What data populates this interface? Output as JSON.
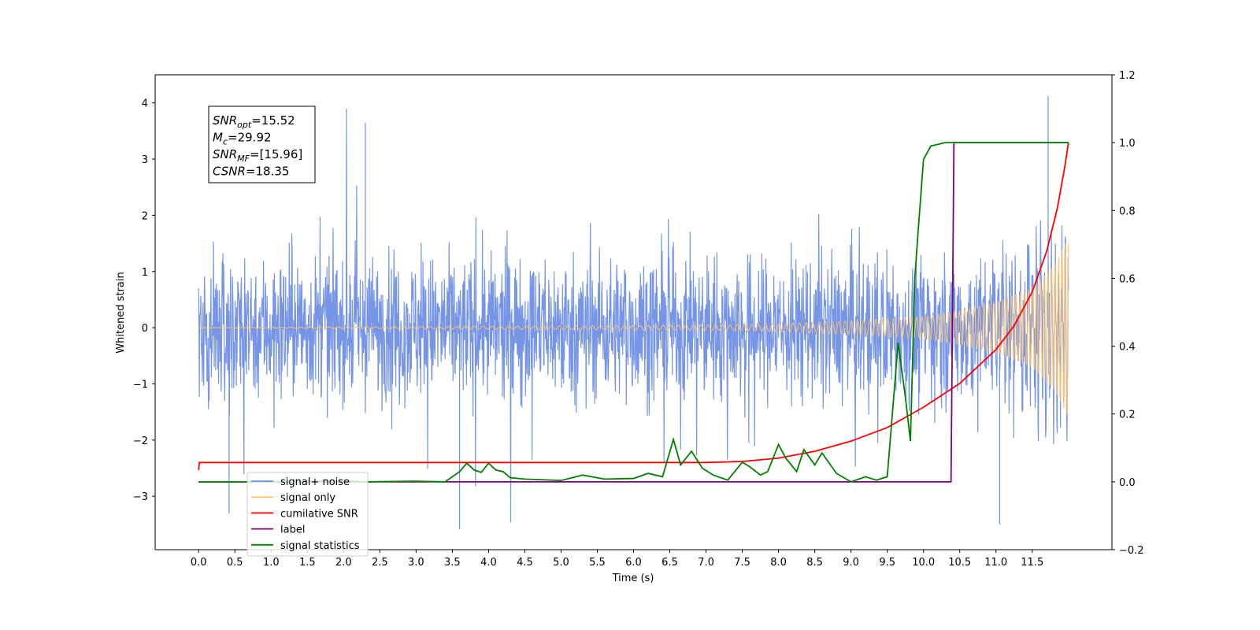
{
  "chart_data": {
    "type": "line",
    "xlabel": "Time (s)",
    "ylabel_left": "Whitened strain",
    "ylabel_right": "",
    "xlim": [
      -0.6,
      12.6
    ],
    "ylim_left": [
      -3.95,
      4.5
    ],
    "ylim_right": [
      -0.2,
      1.2
    ],
    "x_ticks": [
      "0.0",
      "0.5",
      "1.0",
      "1.5",
      "2.0",
      "2.5",
      "3.0",
      "3.5",
      "4.0",
      "4.5",
      "5.0",
      "5.5",
      "6.0",
      "6.5",
      "7.0",
      "7.5",
      "8.0",
      "8.5",
      "9.0",
      "9.5",
      "10.0",
      "10.5",
      "11.0",
      "11.5"
    ],
    "y_ticks_left": [
      "4",
      "3",
      "2",
      "1",
      "0",
      "−1",
      "−2",
      "−3"
    ],
    "y_ticks_right": [
      "1.2",
      "1.0",
      "0.8",
      "0.6",
      "0.4",
      "0.2",
      "0.0",
      "−0.2"
    ],
    "grid": false,
    "legend_position": "lower-left",
    "series": [
      {
        "name": "signal+ noise",
        "axis": "left",
        "color": "#6f8fe6",
        "description_values": {
          "x_range": [
            0.0,
            12.0
          ],
          "envelope_typical": [
            -1.8,
            1.8
          ],
          "max": 4.12,
          "min": -3.59
        }
      },
      {
        "name": "signal only",
        "axis": "left",
        "color": "#ffc266",
        "description_values": {
          "x_range": [
            0.0,
            12.0
          ],
          "amplitude_points": [
            [
              0.0,
              0.0
            ],
            [
              7.5,
              0.05
            ],
            [
              9.0,
              0.12
            ],
            [
              10.0,
              0.2
            ],
            [
              10.5,
              0.3
            ],
            [
              11.0,
              0.45
            ],
            [
              11.5,
              0.7
            ],
            [
              11.8,
              1.1
            ],
            [
              12.0,
              1.6
            ]
          ]
        }
      },
      {
        "name": "cumilative SNR",
        "axis": "right",
        "color": "#ff0000",
        "x": [
          0.0,
          0.01,
          2.0,
          4.0,
          6.0,
          7.0,
          7.5,
          8.0,
          8.5,
          9.0,
          9.5,
          10.0,
          10.5,
          11.0,
          11.25,
          11.5,
          11.7,
          11.85,
          11.95,
          12.0
        ],
        "values": [
          0.035,
          0.057,
          0.057,
          0.057,
          0.057,
          0.057,
          0.06,
          0.07,
          0.09,
          0.12,
          0.16,
          0.22,
          0.29,
          0.39,
          0.46,
          0.56,
          0.68,
          0.81,
          0.93,
          1.0
        ]
      },
      {
        "name": "label",
        "axis": "right",
        "color": "#800080",
        "x": [
          0.0,
          10.38,
          10.42,
          12.0
        ],
        "values": [
          0.0,
          0.0,
          1.0,
          1.0
        ]
      },
      {
        "name": "signal statistics",
        "axis": "right",
        "color": "#008000",
        "x": [
          0.0,
          1.0,
          2.0,
          2.3,
          3.0,
          3.4,
          3.6,
          3.7,
          3.8,
          3.9,
          4.0,
          4.1,
          4.2,
          4.3,
          4.5,
          5.0,
          5.3,
          5.6,
          6.0,
          6.2,
          6.4,
          6.55,
          6.65,
          6.8,
          6.95,
          7.1,
          7.3,
          7.5,
          7.6,
          7.75,
          7.85,
          8.0,
          8.1,
          8.25,
          8.35,
          8.5,
          8.6,
          8.8,
          9.0,
          9.2,
          9.35,
          9.5,
          9.65,
          9.75,
          9.82,
          9.88,
          9.93,
          10.0,
          10.1,
          10.2,
          10.3,
          10.45,
          11.0,
          12.0
        ],
        "values": [
          0.0,
          0.0,
          0.003,
          0.0,
          0.002,
          0.0,
          0.03,
          0.055,
          0.035,
          0.028,
          0.055,
          0.035,
          0.03,
          0.012,
          0.008,
          0.004,
          0.02,
          0.008,
          0.01,
          0.025,
          0.015,
          0.125,
          0.05,
          0.09,
          0.04,
          0.02,
          0.005,
          0.058,
          0.045,
          0.02,
          0.03,
          0.11,
          0.07,
          0.03,
          0.095,
          0.05,
          0.085,
          0.025,
          0.0,
          0.015,
          0.005,
          0.015,
          0.41,
          0.25,
          0.12,
          0.6,
          0.75,
          0.95,
          0.99,
          0.995,
          1.0,
          1.0,
          1.0,
          1.0
        ]
      }
    ],
    "annotation": {
      "lines": [
        {
          "base": "SNR",
          "sub": "opt",
          "value": "=15.52"
        },
        {
          "base": "M",
          "sub": "c",
          "value": "=29.92"
        },
        {
          "base": "SNR",
          "sub": "MF",
          "value": "=[15.96]"
        },
        {
          "base": "CSNR",
          "sub": "",
          "value": "=18.35"
        }
      ]
    },
    "legend": [
      {
        "label": "signal+ noise",
        "color": "#6f8fe6"
      },
      {
        "label": "signal only",
        "color": "#ffc266"
      },
      {
        "label": "cumilative SNR",
        "color": "#ff0000"
      },
      {
        "label": "label",
        "color": "#800080"
      },
      {
        "label": "signal statistics",
        "color": "#008000"
      }
    ]
  }
}
